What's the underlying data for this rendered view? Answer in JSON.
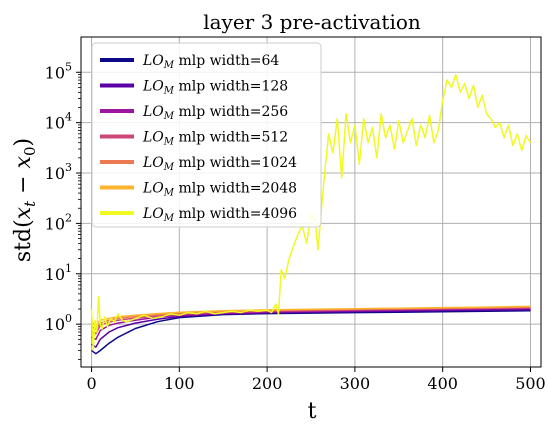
{
  "chart_data": {
    "type": "line",
    "title": "layer 3 pre-activation",
    "xlabel": "t",
    "ylabel": "std(x_t − x_0)",
    "ylabel_parts": {
      "prefix": "std(",
      "x1": "x",
      "sub1": "t",
      "minus": " − ",
      "x2": "x",
      "sub2": "0",
      "suffix": ")"
    },
    "xlim": [
      -12,
      512
    ],
    "ylim_log10": [
      -0.85,
      5.7
    ],
    "yscale": "log",
    "grid": true,
    "legend_position": "top-left",
    "x_ticks": [
      {
        "value": 0,
        "label": "0"
      },
      {
        "value": 100,
        "label": "100"
      },
      {
        "value": 200,
        "label": "200"
      },
      {
        "value": 300,
        "label": "300"
      },
      {
        "value": 400,
        "label": "400"
      },
      {
        "value": 500,
        "label": "500"
      }
    ],
    "y_ticks": [
      {
        "exp": 0,
        "base": "10",
        "power": "0"
      },
      {
        "exp": 1,
        "base": "10",
        "power": "1"
      },
      {
        "exp": 2,
        "base": "10",
        "power": "2"
      },
      {
        "exp": 3,
        "base": "10",
        "power": "3"
      },
      {
        "exp": 4,
        "base": "10",
        "power": "4"
      },
      {
        "exp": 5,
        "base": "10",
        "power": "5"
      }
    ],
    "series": [
      {
        "name": "LO_M mlp width=64",
        "legend": {
          "lo": "LO",
          "sub": "M",
          "rest": " mlp width=64"
        },
        "color": "#0d0887",
        "x": [
          0,
          5,
          10,
          20,
          30,
          50,
          75,
          100,
          150,
          200,
          250,
          300,
          350,
          400,
          450,
          500
        ],
        "y": [
          0.3,
          0.26,
          0.3,
          0.42,
          0.55,
          0.82,
          1.12,
          1.35,
          1.55,
          1.62,
          1.66,
          1.7,
          1.73,
          1.77,
          1.8,
          1.85
        ]
      },
      {
        "name": "LO_M mlp width=128",
        "legend": {
          "lo": "LO",
          "sub": "M",
          "rest": " mlp width=128"
        },
        "color": "#5c01a6",
        "x": [
          0,
          5,
          10,
          20,
          30,
          50,
          75,
          100,
          150,
          200,
          250,
          300,
          350,
          400,
          450,
          500
        ],
        "y": [
          0.4,
          0.35,
          0.5,
          0.7,
          0.85,
          1.05,
          1.25,
          1.42,
          1.6,
          1.68,
          1.73,
          1.78,
          1.82,
          1.87,
          1.9,
          1.95
        ]
      },
      {
        "name": "LO_M mlp width=256",
        "legend": {
          "lo": "LO",
          "sub": "M",
          "rest": " mlp width=256"
        },
        "color": "#9c179e",
        "x": [
          0,
          5,
          10,
          20,
          30,
          50,
          75,
          100,
          150,
          200,
          250,
          300,
          350,
          400,
          450,
          500
        ],
        "y": [
          0.55,
          0.5,
          0.75,
          0.95,
          1.05,
          1.2,
          1.38,
          1.5,
          1.65,
          1.74,
          1.8,
          1.85,
          1.9,
          1.95,
          2.0,
          2.05
        ]
      },
      {
        "name": "LO_M mlp width=512",
        "legend": {
          "lo": "LO",
          "sub": "M",
          "rest": " mlp width=512"
        },
        "color": "#cc4778",
        "x": [
          0,
          5,
          10,
          20,
          30,
          50,
          75,
          100,
          150,
          200,
          250,
          300,
          350,
          400,
          450,
          500
        ],
        "y": [
          0.7,
          0.65,
          0.95,
          1.1,
          1.2,
          1.32,
          1.45,
          1.58,
          1.72,
          1.8,
          1.86,
          1.92,
          1.97,
          2.02,
          2.07,
          2.12
        ]
      },
      {
        "name": "LO_M mlp width=1024",
        "legend": {
          "lo": "LO",
          "sub": "M",
          "rest": " mlp width=1024"
        },
        "color": "#ed7953",
        "x": [
          0,
          5,
          10,
          20,
          30,
          50,
          75,
          100,
          150,
          200,
          250,
          300,
          350,
          400,
          450,
          500
        ],
        "y": [
          0.9,
          0.8,
          1.05,
          1.2,
          1.3,
          1.42,
          1.55,
          1.65,
          1.78,
          1.86,
          1.93,
          1.98,
          2.03,
          2.08,
          2.12,
          2.18
        ]
      },
      {
        "name": "LO_M mlp width=2048",
        "legend": {
          "lo": "LO",
          "sub": "M",
          "rest": " mlp width=2048"
        },
        "color": "#fdb42f",
        "x": [
          0,
          5,
          10,
          20,
          30,
          50,
          75,
          100,
          150,
          200,
          250,
          300,
          350,
          400,
          450,
          500
        ],
        "y": [
          1.1,
          0.95,
          1.2,
          1.3,
          1.4,
          1.5,
          1.62,
          1.72,
          1.84,
          1.92,
          1.98,
          2.03,
          2.08,
          2.13,
          2.18,
          2.25
        ]
      },
      {
        "name": "LO_M mlp width=4096",
        "legend": {
          "lo": "LO",
          "sub": "M",
          "rest": " mlp width=4096"
        },
        "color": "#f0f921",
        "x": [
          0,
          2,
          4,
          6,
          8,
          10,
          12,
          15,
          18,
          22,
          26,
          30,
          35,
          40,
          50,
          60,
          70,
          80,
          90,
          100,
          110,
          120,
          130,
          140,
          150,
          160,
          170,
          180,
          190,
          200,
          205,
          210,
          213,
          216,
          220,
          225,
          230,
          235,
          240,
          245,
          250,
          255,
          258,
          262,
          265,
          270,
          275,
          280,
          285,
          290,
          295,
          300,
          305,
          310,
          315,
          320,
          325,
          330,
          335,
          340,
          345,
          350,
          355,
          360,
          365,
          370,
          375,
          380,
          385,
          390,
          395,
          400,
          405,
          410,
          415,
          420,
          425,
          430,
          435,
          440,
          445,
          450,
          455,
          460,
          465,
          470,
          475,
          480,
          485,
          490,
          495,
          500
        ],
        "y": [
          2.0,
          0.3,
          1.2,
          0.7,
          3.5,
          1.0,
          0.8,
          1.4,
          0.9,
          1.3,
          1.1,
          1.6,
          1.2,
          1.1,
          1.3,
          1.5,
          1.3,
          1.4,
          1.6,
          1.5,
          1.7,
          1.6,
          1.8,
          1.6,
          1.7,
          1.8,
          1.7,
          1.9,
          1.8,
          1.9,
          1.7,
          2.5,
          1.6,
          12,
          8,
          20,
          35,
          60,
          90,
          40,
          150,
          110,
          30,
          200,
          800,
          6000,
          2500,
          12000,
          800,
          15000,
          4000,
          9000,
          1500,
          12000,
          4000,
          8000,
          2000,
          15000,
          5000,
          9000,
          3000,
          11000,
          4000,
          7000,
          12000,
          3500,
          9000,
          5000,
          14000,
          4000,
          7000,
          28000,
          70000,
          50000,
          90000,
          40000,
          60000,
          30000,
          55000,
          20000,
          35000,
          15000,
          12000,
          8000,
          10000,
          5000,
          9000,
          3500,
          6000,
          2800,
          5500,
          4000
        ]
      }
    ]
  }
}
